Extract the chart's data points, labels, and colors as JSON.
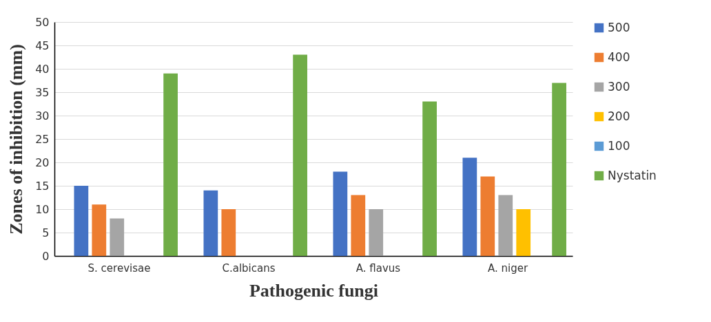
{
  "chart_data": {
    "type": "bar",
    "xlabel": "Pathogenic fungi",
    "ylabel": "Zones of inhibition (mm)",
    "categories": [
      "S. cerevisae",
      "C.albicans",
      "A. flavus",
      "A. niger"
    ],
    "series": [
      {
        "name": "500",
        "color": "#4472c4",
        "values": [
          15,
          14,
          18,
          21
        ]
      },
      {
        "name": "400",
        "color": "#ed7d31",
        "values": [
          11,
          10,
          13,
          17
        ]
      },
      {
        "name": "300",
        "color": "#a5a5a5",
        "values": [
          8,
          0,
          10,
          13
        ]
      },
      {
        "name": "200",
        "color": "#ffc000",
        "values": [
          0,
          0,
          0,
          10
        ]
      },
      {
        "name": "100",
        "color": "#5b9bd5",
        "values": [
          0,
          0,
          0,
          0
        ]
      },
      {
        "name": "Nystatin",
        "color": "#70ad47",
        "values": [
          39,
          43,
          33,
          37
        ]
      }
    ],
    "ylim": [
      0,
      50
    ],
    "yticks": [
      0,
      5,
      10,
      15,
      20,
      25,
      30,
      35,
      40,
      45,
      50
    ],
    "grid": "y",
    "legend": "right"
  }
}
